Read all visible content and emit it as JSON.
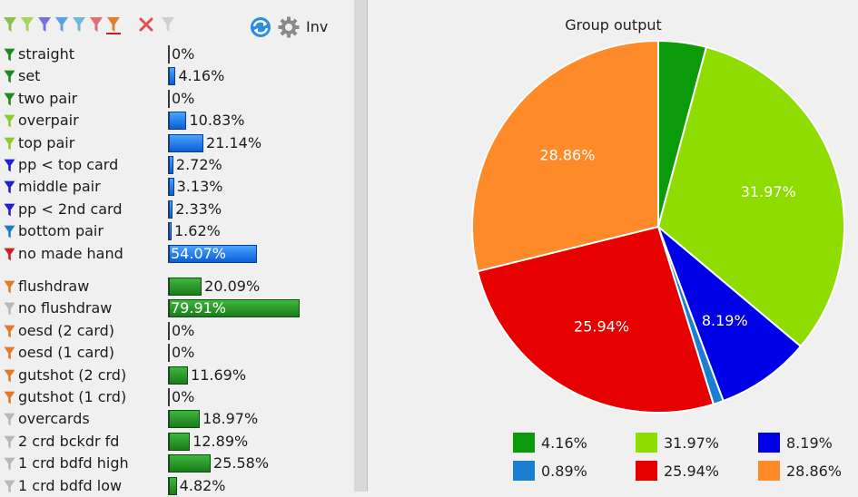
{
  "toolbar": {
    "filter_icons": [
      {
        "name": "filter-green-light-icon",
        "color": "#8fc04a"
      },
      {
        "name": "filter-lime-icon",
        "color": "#a8d65a"
      },
      {
        "name": "filter-purple-icon",
        "color": "#7b6fe0"
      },
      {
        "name": "filter-blue-icon",
        "color": "#5aa0e6"
      },
      {
        "name": "filter-teal-icon",
        "color": "#6fb8d8"
      },
      {
        "name": "filter-red-icon",
        "color": "#e07070"
      },
      {
        "name": "filter-orange-underlined-icon",
        "color": "#e0802a"
      }
    ],
    "inv_label": "Inv"
  },
  "made_hands": [
    {
      "label": "straight",
      "value": "0%",
      "pct": 0,
      "icon_color": "#1e8a1e"
    },
    {
      "label": "set",
      "value": "4.16%",
      "pct": 4.16,
      "icon_color": "#1e8a1e"
    },
    {
      "label": "two pair",
      "value": "0%",
      "pct": 0,
      "icon_color": "#1e8a1e"
    },
    {
      "label": "overpair",
      "value": "10.83%",
      "pct": 10.83,
      "icon_color": "#8ccc2a"
    },
    {
      "label": "top pair",
      "value": "21.14%",
      "pct": 21.14,
      "icon_color": "#8ccc2a"
    },
    {
      "label": "pp < top card",
      "value": "2.72%",
      "pct": 2.72,
      "icon_color": "#2020d0"
    },
    {
      "label": "middle pair",
      "value": "3.13%",
      "pct": 3.13,
      "icon_color": "#2020d0"
    },
    {
      "label": "pp < 2nd card",
      "value": "2.33%",
      "pct": 2.33,
      "icon_color": "#2020d0"
    },
    {
      "label": "bottom pair",
      "value": "1.62%",
      "pct": 1.62,
      "icon_color": "#1a7fbf"
    },
    {
      "label": "no made hand",
      "value": "54.07%",
      "pct": 54.07,
      "icon_color": "#cc1f1f"
    }
  ],
  "draws": [
    {
      "label": "flushdraw",
      "value": "20.09%",
      "pct": 20.09,
      "icon_color": "#e07a2a"
    },
    {
      "label": "no flushdraw",
      "value": "79.91%",
      "pct": 79.91,
      "icon_color": "#b8b8b8"
    },
    {
      "label": "oesd (2 card)",
      "value": "0%",
      "pct": 0,
      "icon_color": "#e07a2a"
    },
    {
      "label": "oesd (1 card)",
      "value": "0%",
      "pct": 0,
      "icon_color": "#e07a2a"
    },
    {
      "label": "gutshot (2 crd)",
      "value": "11.69%",
      "pct": 11.69,
      "icon_color": "#e07a2a"
    },
    {
      "label": "gutshot (1 crd)",
      "value": "0%",
      "pct": 0,
      "icon_color": "#e07a2a"
    },
    {
      "label": "overcards",
      "value": "18.97%",
      "pct": 18.97,
      "icon_color": "#b8b8b8"
    },
    {
      "label": "2 crd bckdr fd",
      "value": "12.89%",
      "pct": 12.89,
      "icon_color": "#b8b8b8"
    },
    {
      "label": "1 crd bdfd high",
      "value": "25.58%",
      "pct": 25.58,
      "icon_color": "#b8b8b8"
    },
    {
      "label": "1 crd bdfd low",
      "value": "4.82%",
      "pct": 4.82,
      "icon_color": "#b8b8b8"
    }
  ],
  "chart_data": {
    "type": "pie",
    "title": "Group output",
    "slices": [
      {
        "value": 4.16,
        "label": "4.16%",
        "color": "#0a9a0a"
      },
      {
        "value": 31.97,
        "label": "31.97%",
        "color": "#8fdc00"
      },
      {
        "value": 8.19,
        "label": "8.19%",
        "color": "#0000e6"
      },
      {
        "value": 0.89,
        "label": "0.89%",
        "color": "#1a7fd0"
      },
      {
        "value": 25.94,
        "label": "25.94%",
        "color": "#e60000"
      },
      {
        "value": 28.86,
        "label": "28.86%",
        "color": "#ff8a2a"
      }
    ],
    "legend": [
      {
        "label": "4.16%",
        "color": "#0a9a0a"
      },
      {
        "label": "31.97%",
        "color": "#8fdc00"
      },
      {
        "label": "8.19%",
        "color": "#0000e6"
      },
      {
        "label": "0.89%",
        "color": "#1a7fd0"
      },
      {
        "label": "25.94%",
        "color": "#e60000"
      },
      {
        "label": "28.86%",
        "color": "#ff8a2a"
      }
    ],
    "visible_slice_labels": [
      "31.97%",
      "8.19%",
      "25.94%",
      "28.86%"
    ],
    "legend_position": "bottom"
  }
}
